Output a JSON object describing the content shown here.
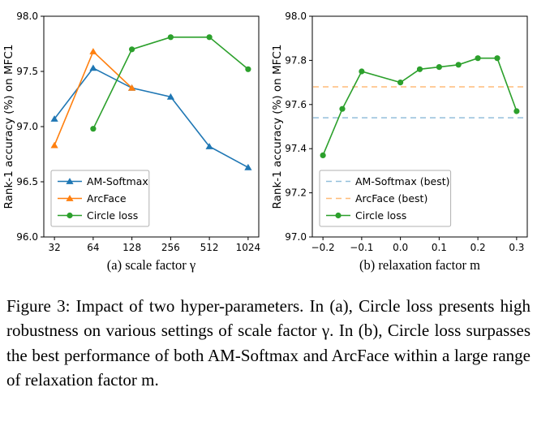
{
  "page": {
    "background": "#ffffff"
  },
  "caption": {
    "text": "Figure 3: Impact of two hyper-parameters. In (a), Circle loss presents high robustness on various settings of scale factor γ. In (b), Circle loss surpasses the best performance of both AM-Softmax and ArcFace within a large range of relaxation factor m."
  },
  "chart_data": [
    {
      "id": "a",
      "type": "line",
      "xscale": "log2",
      "title": "",
      "xlabel": "(a) scale factor γ",
      "ylabel": "Rank-1 accuracy (%) on MFC1",
      "grid": false,
      "legend_position": "lower-left",
      "xticks": [
        32,
        64,
        128,
        256,
        512,
        1024
      ],
      "xtick_labels": [
        "32",
        "64",
        "128",
        "256",
        "512",
        "1024"
      ],
      "ylim": [
        96.0,
        98.0
      ],
      "yticks": [
        96.0,
        96.5,
        97.0,
        97.5,
        98.0
      ],
      "ytick_labels": [
        "96.0",
        "96.5",
        "97.0",
        "97.5",
        "98.0"
      ],
      "series": [
        {
          "name": "AM-Softmax",
          "color": "#1f77b4",
          "marker": "triangle",
          "style": "solid",
          "x": [
            32,
            64,
            128,
            256,
            512,
            1024
          ],
          "y": [
            97.07,
            97.53,
            97.35,
            97.27,
            96.82,
            96.63
          ]
        },
        {
          "name": "ArcFace",
          "color": "#ff7f0e",
          "marker": "triangle",
          "style": "solid",
          "x": [
            32,
            64,
            128
          ],
          "y": [
            96.83,
            97.68,
            97.35
          ]
        },
        {
          "name": "Circle loss",
          "color": "#2ca02c",
          "marker": "circle",
          "style": "solid",
          "x": [
            64,
            128,
            256,
            512,
            1024
          ],
          "y": [
            96.98,
            97.7,
            97.81,
            97.81,
            97.52
          ]
        }
      ]
    },
    {
      "id": "b",
      "type": "line",
      "xscale": "linear",
      "title": "",
      "xlabel": "(b) relaxation factor m",
      "ylabel": "Rank-1 accuracy (%) on MFC1",
      "grid": false,
      "legend_position": "lower-left",
      "xticks": [
        -0.2,
        -0.1,
        0.0,
        0.1,
        0.2,
        0.3
      ],
      "xtick_labels": [
        "−0.2",
        "−0.1",
        "0.0",
        "0.1",
        "0.2",
        "0.3"
      ],
      "ylim": [
        97.0,
        98.0
      ],
      "yticks": [
        97.0,
        97.2,
        97.4,
        97.6,
        97.8,
        98.0
      ],
      "ytick_labels": [
        "97.0",
        "97.2",
        "97.4",
        "97.6",
        "97.8",
        "98.0"
      ],
      "hlines": [
        {
          "name": "AM-Softmax (best)",
          "y": 97.54,
          "color": "#92bfdb",
          "style": "dashed"
        },
        {
          "name": "ArcFace (best)",
          "y": 97.68,
          "color": "#ffbb78",
          "style": "dashed"
        }
      ],
      "series": [
        {
          "name": "Circle loss",
          "color": "#2ca02c",
          "marker": "circle",
          "style": "solid",
          "x": [
            -0.2,
            -0.15,
            -0.1,
            0.0,
            0.05,
            0.1,
            0.15,
            0.2,
            0.25,
            0.3
          ],
          "y": [
            97.37,
            97.58,
            97.75,
            97.7,
            97.76,
            97.77,
            97.78,
            97.81,
            97.81,
            97.57
          ]
        }
      ]
    }
  ]
}
